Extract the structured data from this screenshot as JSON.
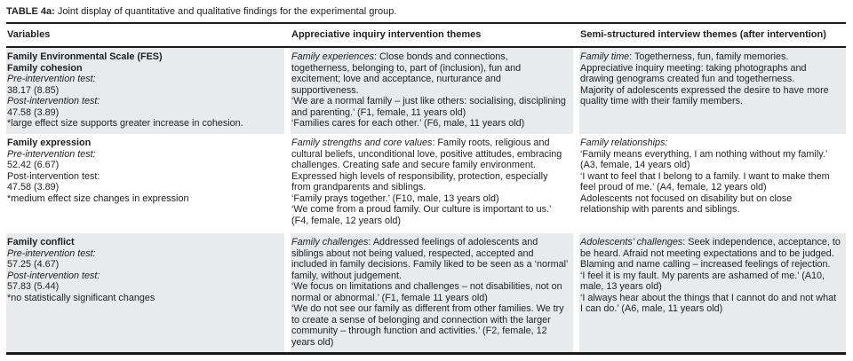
{
  "colors": {
    "row_shading": "#e8eaec",
    "rule": "#1a1a1a",
    "text": "#1f1f1f"
  },
  "table": {
    "title_label": "TABLE 4a:",
    "title_text": " Joint display of quantitative and qualitative findings for the experimental group.",
    "columns": [
      "Variables",
      "Appreciative inquiry intervention themes",
      "Semi-structured interview themes (after intervention)"
    ],
    "rows": [
      {
        "variables": [
          [
            {
              "t": "Family Environmental Scale (FES)",
              "b": true
            }
          ],
          [
            {
              "t": "Family cohesion",
              "b": true
            }
          ],
          [
            {
              "t": "Pre-intervention test:",
              "i": true
            }
          ],
          [
            {
              "t": "38.17 (8.85)"
            }
          ],
          [
            {
              "t": "Post-intervention test:",
              "i": true
            }
          ],
          [
            {
              "t": "47.58 (3.89)"
            }
          ],
          [
            {
              "t": "*large effect size supports greater increase in cohesion."
            }
          ]
        ],
        "ai_themes": [
          [
            {
              "t": "Family experiences",
              "i": true
            },
            {
              "t": ": Close bonds and connections, togetherness, belonging to, part of (inclusion), fun and excitement; love and acceptance, nurturance and supportiveness."
            }
          ],
          [
            {
              "t": "‘We are a normal family – just like others: socialising, disciplining and parenting.’ (F1, female, 11 years old)"
            }
          ],
          [
            {
              "t": "‘Families cares for each other.’ (F6, male, 11 years old)"
            }
          ]
        ],
        "interview_themes": [
          [
            {
              "t": "Family time",
              "i": true
            },
            {
              "t": ": Togetherness, fun, family memories."
            }
          ],
          [
            {
              "t": "Appreciative inquiry meeting: taking photographs and drawing genograms created fun and togetherness."
            }
          ],
          [
            {
              "t": "Majority of adolescents expressed the desire to have more quality time with their family members."
            }
          ]
        ]
      },
      {
        "variables": [
          [
            {
              "t": "Family expression",
              "b": true
            }
          ],
          [
            {
              "t": "Pre-intervention test:",
              "i": true
            }
          ],
          [
            {
              "t": "52.42 (6.67)"
            }
          ],
          [
            {
              "t": "Post-intervention test:"
            }
          ],
          [
            {
              "t": "47.58 (3.89)"
            }
          ],
          [
            {
              "t": "*medium effect size changes in expression"
            }
          ]
        ],
        "ai_themes": [
          [
            {
              "t": "Family strengths and core values",
              "i": true
            },
            {
              "t": ": Family roots, religious and cultural beliefs, unconditional love, positive attitudes, embracing challenges. Creating safe and secure family environment. Expressed high levels of responsibility, protection, especially from grandparents and siblings."
            }
          ],
          [
            {
              "t": "‘Family prays together.’ (F10, male, 13 years old)"
            }
          ],
          [
            {
              "t": "‘We come from a proud family. Our culture is important to us.’ (F4, female, 12 years old)"
            }
          ]
        ],
        "interview_themes": [
          [
            {
              "t": "Family relationships:",
              "i": true
            }
          ],
          [
            {
              "t": "‘Family means everything, I am nothing without my family.’ (A3, female, 14 years old)"
            }
          ],
          [
            {
              "t": "‘I want to feel that I belong to a family. I want to make them feel proud of me.’ (A4, female, 12 years old)"
            }
          ],
          [
            {
              "t": "Adolescents not focused on disability but on close relationship with parents and siblings."
            }
          ]
        ]
      },
      {
        "variables": [
          [
            {
              "t": "Family conflict",
              "b": true
            }
          ],
          [
            {
              "t": "Pre-intervention test:",
              "i": true
            }
          ],
          [
            {
              "t": "57.25 (4.67)"
            }
          ],
          [
            {
              "t": "Post-intervention test:",
              "i": true
            }
          ],
          [
            {
              "t": "57.83 (5.44)"
            }
          ],
          [
            {
              "t": "*no statistically significant changes"
            }
          ]
        ],
        "ai_themes": [
          [
            {
              "t": "Family challenges",
              "i": true
            },
            {
              "t": ": Addressed feelings of adolescents and siblings about not being valued, respected, accepted and included in family decisions. Family liked to be seen as a ‘normal’ family, without judgement."
            }
          ],
          [
            {
              "t": "‘We focus on limitations and challenges – not disabilities, not on normal or abnormal.’ (F1, female 11 years old)"
            }
          ],
          [
            {
              "t": "‘We do not see our family as different from other families. We try to create a sense of belonging and connection with the larger community – through function and activities.’ (F2, female, 12 years old)"
            }
          ]
        ],
        "interview_themes": [
          [
            {
              "t": "Adolescents’ challenges",
              "i": true
            },
            {
              "t": ": Seek independence, acceptance, to be heard. Afraid not meeting expectations and to be judged. Blaming and name calling – increased feelings of rejection."
            }
          ],
          [
            {
              "t": "‘I feel it is my fault. My parents are ashamed of me.’ (A10, male, 13 years old)"
            }
          ],
          [
            {
              "t": "‘I always hear about the things that I cannot do and not what I can do.’ (A6, male, 11 years old)"
            }
          ]
        ]
      }
    ]
  }
}
